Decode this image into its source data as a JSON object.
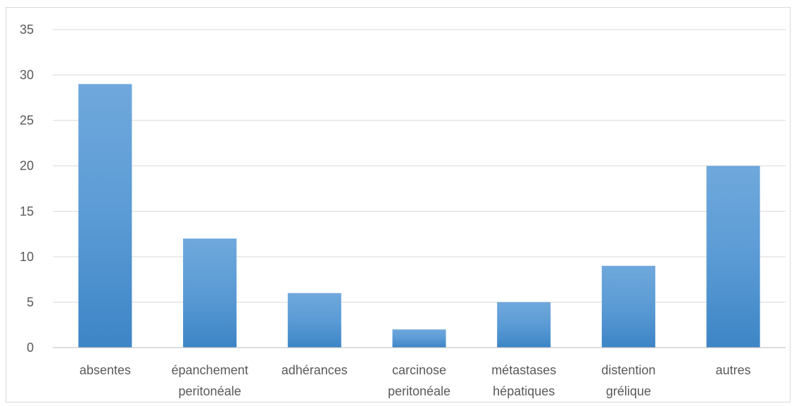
{
  "chart_data": {
    "type": "bar",
    "title": "",
    "xlabel": "",
    "ylabel": "",
    "categories": [
      [
        "absentes"
      ],
      [
        "épanchement",
        "peritonéale"
      ],
      [
        "adhérances"
      ],
      [
        "carcinose",
        "peritonéale"
      ],
      [
        "métastases",
        "hépatiques"
      ],
      [
        "distention",
        "grélique"
      ],
      [
        "autres"
      ]
    ],
    "values": [
      29,
      12,
      6,
      2,
      5,
      9,
      20
    ],
    "ylim": [
      0,
      35
    ],
    "yticks": [
      "0",
      "5",
      "10",
      "15",
      "20",
      "25",
      "30",
      "35"
    ],
    "grid": true,
    "legend": "none",
    "colors": {
      "bar_top": "#6fa8dc",
      "bar_mid": "#5b9bd5",
      "bar_bottom": "#3d85c6",
      "gridline": "#d9d9d9",
      "axis": "#bfbfbf",
      "text": "#595959"
    }
  }
}
